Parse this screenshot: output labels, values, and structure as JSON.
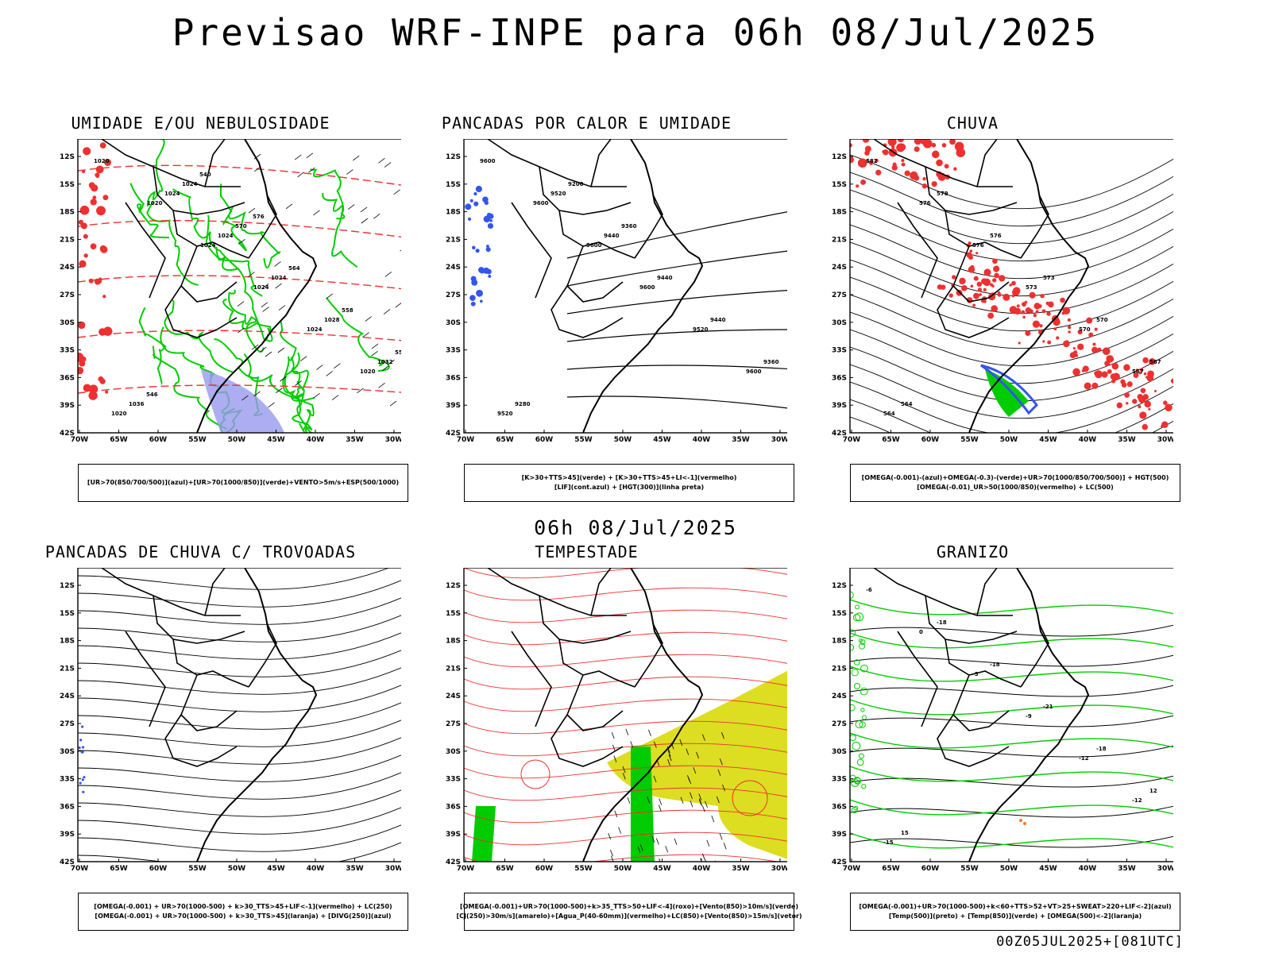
{
  "header": {
    "title": "Previsao WRF-INPE  para 06h 08/Jul/2025"
  },
  "mid_title": "06h 08/Jul/2025",
  "footer": "00Z05JUL2025+[081UTC]",
  "axes": {
    "lat_labels": [
      "12S",
      "15S",
      "18S",
      "21S",
      "24S",
      "27S",
      "30S",
      "33S",
      "36S",
      "39S",
      "42S"
    ],
    "lon_labels": [
      "70W",
      "65W",
      "60W",
      "55W",
      "50W",
      "45W",
      "40W",
      "35W",
      "30W"
    ]
  },
  "colors": {
    "green": "#00cc00",
    "blue": "#3355ee",
    "red": "#ee3030",
    "yellow": "#dddd22",
    "lavender": "#9999ee",
    "orange": "#ff7722"
  },
  "panels": [
    {
      "id": "umidade",
      "title": "UMIDADE E/OU NEBULOSIDADE",
      "legend": [
        "[UR>70(850/700/500)](azul)+[UR>70(1000/850)](verde)+VENTO>5m/s+ESP(500/1000)"
      ],
      "contour_labels": [
        "1020",
        "1020",
        "1024",
        "1024",
        "1024",
        "1020",
        "1020",
        "1024",
        "1024",
        "1024",
        "1028",
        "1032",
        "1036",
        "1024",
        "570",
        "564",
        "558",
        "552",
        "546",
        "540",
        "576"
      ]
    },
    {
      "id": "pancadas-calor",
      "title": "PANCADAS POR CALOR E UMIDADE",
      "legend": [
        "[K>30+TTS>45](verde) + [K>30+TTS>45+LI<-1](vermelho)",
        "[LIF](cont.azul) + [HGT(300)](linha preta)"
      ],
      "contour_labels": [
        "9600",
        "9600",
        "9600",
        "9600",
        "9520",
        "9600",
        "9520",
        "9520",
        "9440",
        "9440",
        "9440",
        "9360",
        "9280",
        "9200",
        "9360"
      ]
    },
    {
      "id": "chuva",
      "title": "CHUVA",
      "legend": [
        "[OMEGA(-0.001)-(azul)+OMEGA(-0.3)-(verde)+UR>70(1000/850/700/500)] + HGT(500)",
        "[OMEGA(-0.01)_UR>50(1000/850)(vermelho) + LC(500)"
      ],
      "contour_labels": [
        "582",
        "576",
        "576",
        "573",
        "570",
        "567",
        "564",
        "579",
        "576",
        "573",
        "570",
        "567",
        "564"
      ]
    },
    {
      "id": "pancadas-trovoadas",
      "title": "PANCADAS DE CHUVA C/ TROVOADAS",
      "legend": [
        "[OMEGA(-0.001) + UR>70(1000-500) + k>30_TTS>45+LIF<-1](vermelho) + LC(250)",
        "[OMEGA(-0.001) + UR>70(1000-500) + k>30_TTS>45](laranja) + [DIVG(250)](azul)"
      ],
      "contour_labels": []
    },
    {
      "id": "tempestade",
      "title": "TEMPESTADE",
      "legend": [
        "[OMEGA(-0.001)+UR>70(1000-500)+k>35_TTS>50+LIF<-4](roxo)+[Vento(850)>10m/s](verde)",
        "[CJ(250)>30m/s](amarelo)+[Agua_P(40-60mm)](vermelho)+LC(850)+[Vento(850)>15m/s](vetor)"
      ],
      "contour_labels": []
    },
    {
      "id": "granizo",
      "title": "GRANIZO",
      "legend": [
        "[OMEGA(-0.001)+UR>70(1000-500)+k<60+TTS>52+VT>25+SWEAT>220+LIF<-2](azul)",
        "[Temp(500)](preto) + [Temp(850)](verde) + [OMEGA(500)<-2](laranja)"
      ],
      "contour_labels": [
        "-6",
        "0",
        "-3",
        "-9",
        "-12",
        "-12",
        "-15",
        "-18",
        "-18",
        "-21",
        "-18",
        "12",
        "15"
      ]
    }
  ]
}
